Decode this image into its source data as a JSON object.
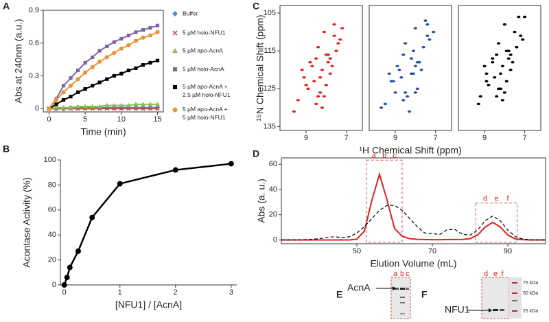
{
  "chart_data": [
    {
      "type": "line",
      "panel": "A",
      "xlabel": "Time (min)",
      "ylabel": "Abs at 240nm (a.u.)",
      "x": [
        0,
        1,
        2,
        3,
        4,
        5,
        6,
        7,
        8,
        9,
        10,
        11,
        12,
        13,
        14,
        15
      ],
      "xlim": [
        -0.8,
        15.8
      ],
      "xticks": [
        0,
        5,
        10,
        15
      ],
      "ylim": [
        -0.03,
        0.9
      ],
      "yticks": [
        0,
        0.3,
        0.6,
        0.9
      ],
      "series": [
        {
          "name": "Buffer",
          "color": "#4a8fc7",
          "marker": "diamond",
          "values": [
            0,
            0,
            0,
            0.01,
            0.01,
            0.01,
            0.01,
            0.01,
            0.01,
            0.01,
            0.01,
            0.01,
            0.01,
            0.01,
            0.01,
            0.01
          ]
        },
        {
          "name": "5 µM holo-NFU1",
          "color": "#c0504d",
          "marker": "x",
          "values": [
            0,
            0,
            0,
            0,
            0,
            0,
            0,
            0,
            0,
            0,
            0,
            0,
            0,
            0,
            0,
            0
          ]
        },
        {
          "name": "5 µM apo-AcnA",
          "color": "#8fbc5a",
          "marker": "triangle",
          "values": [
            0,
            0.01,
            0.01,
            0.01,
            0.02,
            0.02,
            0.02,
            0.02,
            0.03,
            0.03,
            0.03,
            0.03,
            0.04,
            0.04,
            0.04,
            0.04
          ]
        },
        {
          "name": "5 µM holo-AcnA",
          "color": "#8064a2",
          "marker": "square",
          "values": [
            0,
            0.09,
            0.21,
            0.28,
            0.35,
            0.42,
            0.47,
            0.53,
            0.57,
            0.61,
            0.64,
            0.67,
            0.7,
            0.72,
            0.74,
            0.76
          ]
        },
        {
          "name": "5 µM apo-AcnA +\n2.5 µM holo-NFU1",
          "color": "#000000",
          "marker": "square",
          "values": [
            0,
            0.04,
            0.08,
            0.11,
            0.15,
            0.18,
            0.21,
            0.24,
            0.27,
            0.3,
            0.32,
            0.35,
            0.37,
            0.4,
            0.42,
            0.44
          ]
        },
        {
          "name": "5 µM apo-AcnA +\n5 µM holo-NFU1",
          "color": "#e8943a",
          "marker": "circle",
          "values": [
            0,
            0.08,
            0.15,
            0.21,
            0.27,
            0.33,
            0.38,
            0.43,
            0.47,
            0.51,
            0.55,
            0.58,
            0.62,
            0.65,
            0.67,
            0.7
          ]
        }
      ]
    },
    {
      "type": "line",
      "panel": "B",
      "xlabel": "[NFU1] / [AcnA]",
      "ylabel": "Acontase Activity (%)",
      "x": [
        0,
        0.05,
        0.1,
        0.25,
        0.5,
        1,
        2,
        3
      ],
      "xlim": [
        -0.07,
        3.1
      ],
      "xticks": [
        0,
        1,
        2,
        3
      ],
      "ylim": [
        0,
        100
      ],
      "yticks": [
        0,
        20,
        40,
        60,
        80,
        100
      ],
      "series": [
        {
          "color": "#000000",
          "marker": "circle",
          "values": [
            0,
            6,
            14,
            27,
            54,
            81,
            92,
            97
          ]
        }
      ]
    },
    {
      "type": "scatter",
      "panel": "C",
      "xlabel": "¹H Chemical Shift (ppm)",
      "ylabel": "¹⁵N Chemical Shift (ppm)",
      "xlim": [
        10.3,
        6.2
      ],
      "xticks": [
        9,
        7
      ],
      "ylim": [
        136,
        103
      ],
      "yticks": [
        105,
        115,
        125,
        135
      ],
      "series": [
        {
          "color": "#e8201c",
          "x": [
            8.1,
            7.6,
            8.4,
            7.9,
            8.8,
            7.3,
            8.2,
            9.1,
            7.7,
            8.5,
            8.0,
            7.5,
            8.3,
            9.4,
            7.8,
            8.6,
            8.9,
            7.4,
            8.2,
            7.9,
            9.6,
            8.4,
            8.7,
            8.0,
            7.6,
            9.0,
            8.3,
            7.8,
            8.5,
            9.2,
            7.2,
            8.1
          ],
          "values": [
            110,
            108,
            114,
            116,
            118,
            112,
            120,
            122,
            119,
            117,
            124,
            115,
            126,
            128,
            121,
            123,
            125,
            113,
            130,
            118,
            131,
            127,
            119,
            116,
            111,
            124,
            122,
            117,
            129,
            120,
            109,
            127
          ]
        },
        {
          "color": "#2a52a8",
          "x": [
            8.0,
            7.5,
            8.5,
            8.2,
            8.9,
            7.4,
            8.1,
            9.2,
            7.8,
            8.6,
            7.9,
            7.6,
            8.4,
            9.5,
            7.7,
            8.7,
            9.0,
            7.3,
            8.3,
            8.0,
            9.7,
            8.5,
            8.8,
            8.1,
            7.4,
            9.1,
            8.2,
            7.9,
            8.6,
            9.3,
            7.1,
            8.0
          ],
          "values": [
            109,
            107,
            113,
            117,
            119,
            111,
            121,
            123,
            118,
            116,
            125,
            114,
            127,
            129,
            120,
            122,
            126,
            112,
            131,
            119,
            130,
            126,
            120,
            115,
            108,
            123,
            121,
            118,
            128,
            121,
            110,
            126
          ]
        },
        {
          "color": "#000000",
          "x": [
            8.0,
            7.3,
            8.3,
            7.8,
            8.6,
            7.1,
            8.1,
            8.9,
            7.6,
            8.4,
            7.9,
            7.4,
            8.2,
            9.2,
            7.7,
            8.5,
            8.8,
            7.2,
            8.1,
            7.8,
            9.3,
            8.3,
            8.6,
            7.9,
            7.5,
            8.9,
            8.2,
            7.7,
            8.4,
            9.0,
            7.0,
            8.0
          ],
          "values": [
            108,
            106,
            113,
            115,
            117,
            112,
            119,
            121,
            118,
            116,
            123,
            114,
            125,
            127,
            120,
            122,
            124,
            111,
            128,
            117,
            129,
            125,
            118,
            115,
            110,
            123,
            121,
            116,
            127,
            119,
            106,
            126
          ]
        }
      ]
    },
    {
      "type": "line",
      "panel": "D",
      "xlabel": "Elution Volume (mL)",
      "ylabel": "Abs (a. u.)",
      "x": [
        30,
        32,
        34,
        36,
        38,
        40,
        42,
        44,
        46,
        48,
        50,
        52,
        54,
        56,
        58,
        60,
        62,
        64,
        66,
        68,
        70,
        72,
        74,
        76,
        78,
        80,
        82,
        84,
        86,
        88,
        90,
        92,
        94,
        96,
        98,
        100
      ],
      "xlim": [
        30,
        100
      ],
      "xticks": [
        50,
        70,
        90
      ],
      "ylim": [
        -3,
        65
      ],
      "yticks": [
        0,
        20,
        40,
        60
      ],
      "fractions": [
        "a",
        "b",
        "c",
        "d",
        "e",
        "f"
      ],
      "series": [
        {
          "color": "#e02020",
          "values": [
            0,
            0,
            0,
            0,
            0,
            0,
            0,
            0,
            0,
            0,
            0.6,
            7,
            31.6,
            52,
            31.6,
            9,
            3,
            1,
            0.5,
            0.3,
            0.2,
            0.2,
            0.3,
            0.3,
            0.4,
            1,
            3.9,
            10.2,
            14,
            10.2,
            3.9,
            0.8,
            0.2,
            0,
            0,
            0
          ]
        },
        {
          "color": "#000000",
          "dashed": true,
          "values": [
            0,
            0,
            0,
            0.2,
            0.5,
            1,
            2,
            2.5,
            2,
            2.5,
            5.5,
            10.5,
            17,
            23.4,
            27.4,
            27.4,
            23.4,
            17,
            10.5,
            5.5,
            5,
            4.4,
            8.3,
            8.3,
            4.4,
            3.8,
            7.8,
            15.2,
            19,
            15.2,
            7.8,
            2.6,
            0.7,
            0.2,
            0,
            0
          ]
        }
      ]
    }
  ],
  "gels": [
    {
      "panel": "E",
      "protein": "AcnA",
      "lanes": [
        "a",
        "b",
        "c"
      ]
    },
    {
      "panel": "F",
      "protein": "NFU1",
      "lanes": [
        "d",
        "e",
        "f"
      ],
      "markers": [
        "75 kDa",
        "50 kDa",
        "25 kDa"
      ]
    }
  ]
}
